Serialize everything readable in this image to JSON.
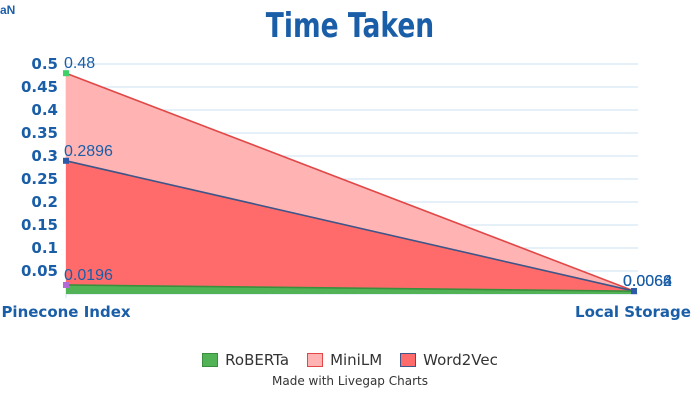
{
  "corner_text": "aN",
  "credit": "Made with Livegap Charts",
  "chart_data": {
    "type": "area",
    "title": "Time Taken",
    "categories": [
      "Pinecone Index",
      "Local Storage"
    ],
    "yticks": [
      "0.05",
      "0.1",
      "0.15",
      "0.2",
      "0.25",
      "0.3",
      "0.35",
      "0.4",
      "0.45",
      "0.5"
    ],
    "ylim": [
      0,
      0.5
    ],
    "grid": true,
    "legend": "bottom",
    "series": [
      {
        "name": "RoBERTa",
        "values": [
          0.0196,
          0.0062
        ],
        "labels": [
          "0.0196",
          "0.0062"
        ],
        "fill": "#52b356",
        "stroke": "#3a8f3e",
        "marker": "#b36ad6"
      },
      {
        "name": "MiniLM",
        "values": [
          0.48,
          0.0066
        ],
        "labels": [
          "0.48",
          "0.0066"
        ],
        "fill": "#ffb3b3",
        "stroke": "#e04848",
        "marker": "#3fd06a"
      },
      {
        "name": "Word2Vec",
        "values": [
          0.2896,
          0.0064
        ],
        "labels": [
          "0.2896",
          "0.0064"
        ],
        "fill": "#ff6b6b",
        "stroke": "#3d5588",
        "marker": "#2a5aa8"
      }
    ]
  }
}
